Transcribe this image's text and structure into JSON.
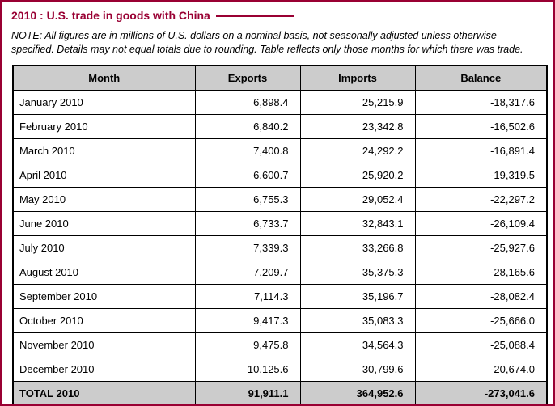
{
  "page": {
    "title": "2010 : U.S. trade in goods with China",
    "note": "NOTE: All figures are in millions of U.S. dollars on a nominal basis, not seasonally adjusted unless otherwise specified. Details may not equal totals due to rounding. Table reflects only those months for which there was trade."
  },
  "colors": {
    "accent": "#990033",
    "page_border": "#990033",
    "table_border": "#000000",
    "header_bg": "#cccccc",
    "total_row_bg": "#cccccc",
    "text": "#000000"
  },
  "table": {
    "columns": [
      "Month",
      "Exports",
      "Imports",
      "Balance"
    ],
    "rows": [
      {
        "month": "January 2010",
        "exports": "6,898.4",
        "imports": "25,215.9",
        "balance": "-18,317.6"
      },
      {
        "month": "February 2010",
        "exports": "6,840.2",
        "imports": "23,342.8",
        "balance": "-16,502.6"
      },
      {
        "month": "March 2010",
        "exports": "7,400.8",
        "imports": "24,292.2",
        "balance": "-16,891.4"
      },
      {
        "month": "April 2010",
        "exports": "6,600.7",
        "imports": "25,920.2",
        "balance": "-19,319.5"
      },
      {
        "month": "May 2010",
        "exports": "6,755.3",
        "imports": "29,052.4",
        "balance": "-22,297.2"
      },
      {
        "month": "June 2010",
        "exports": "6,733.7",
        "imports": "32,843.1",
        "balance": "-26,109.4"
      },
      {
        "month": "July 2010",
        "exports": "7,339.3",
        "imports": "33,266.8",
        "balance": "-25,927.6"
      },
      {
        "month": "August 2010",
        "exports": "7,209.7",
        "imports": "35,375.3",
        "balance": "-28,165.6"
      },
      {
        "month": "September 2010",
        "exports": "7,114.3",
        "imports": "35,196.7",
        "balance": "-28,082.4"
      },
      {
        "month": "October 2010",
        "exports": "9,417.3",
        "imports": "35,083.3",
        "balance": "-25,666.0"
      },
      {
        "month": "November 2010",
        "exports": "9,475.8",
        "imports": "34,564.3",
        "balance": "-25,088.4"
      },
      {
        "month": "December 2010",
        "exports": "10,125.6",
        "imports": "30,799.6",
        "balance": "-20,674.0"
      }
    ],
    "total": {
      "month": "TOTAL 2010",
      "exports": "91,911.1",
      "imports": "364,952.6",
      "balance": "-273,041.6"
    }
  },
  "chart_data": {
    "type": "table",
    "title": "2010 : U.S. trade in goods with China",
    "units": "millions of U.S. dollars, nominal basis, not seasonally adjusted",
    "columns": [
      "Month",
      "Exports",
      "Imports",
      "Balance"
    ],
    "categories": [
      "January 2010",
      "February 2010",
      "March 2010",
      "April 2010",
      "May 2010",
      "June 2010",
      "July 2010",
      "August 2010",
      "September 2010",
      "October 2010",
      "November 2010",
      "December 2010"
    ],
    "series": [
      {
        "name": "Exports",
        "values": [
          6898.4,
          6840.2,
          7400.8,
          6600.7,
          6755.3,
          6733.7,
          7339.3,
          7209.7,
          7114.3,
          9417.3,
          9475.8,
          10125.6
        ]
      },
      {
        "name": "Imports",
        "values": [
          25215.9,
          23342.8,
          24292.2,
          25920.2,
          29052.4,
          32843.1,
          33266.8,
          35375.3,
          35196.7,
          35083.3,
          34564.3,
          30799.6
        ]
      },
      {
        "name": "Balance",
        "values": [
          -18317.6,
          -16502.6,
          -16891.4,
          -19319.5,
          -22297.2,
          -26109.4,
          -25927.6,
          -28165.6,
          -28082.4,
          -25666.0,
          -25088.4,
          -20674.0
        ]
      }
    ],
    "totals": {
      "name": "TOTAL 2010",
      "Exports": 91911.1,
      "Imports": 364952.6,
      "Balance": -273041.6
    }
  }
}
